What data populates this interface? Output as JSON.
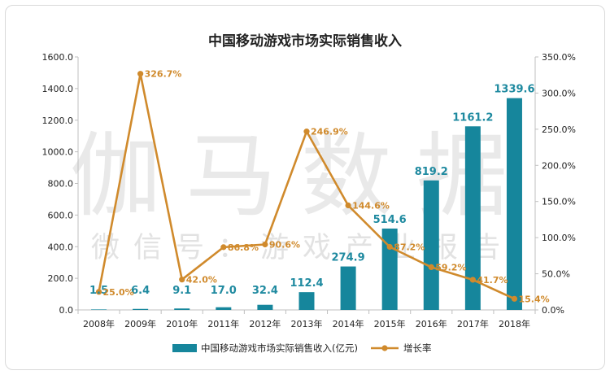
{
  "watermark": {
    "main": "伽马数据",
    "sub": "微信号：游戏产业报告"
  },
  "chart_data": {
    "type": "bar",
    "title": "中国移动游戏市场实际销售收入",
    "categories": [
      "2008年",
      "2009年",
      "2010年",
      "2011年",
      "2012年",
      "2013年",
      "2014年",
      "2015年",
      "2016年",
      "2017年",
      "2018年"
    ],
    "series": [
      {
        "name": "中国移动游戏市场实际销售收入(亿元)",
        "type": "bar",
        "axis": "left",
        "color": "#16869c",
        "values": [
          1.5,
          6.4,
          9.1,
          17.0,
          32.4,
          112.4,
          274.9,
          514.6,
          819.2,
          1161.2,
          1339.6
        ],
        "labels": [
          "1.5",
          "6.4",
          "9.1",
          "17.0",
          "32.4",
          "112.4",
          "274.9",
          "514.6",
          "819.2",
          "1161.2",
          "1339.6"
        ]
      },
      {
        "name": "增长率",
        "type": "line",
        "axis": "right",
        "color": "#d08a2c",
        "values": [
          25.0,
          326.7,
          42.0,
          86.8,
          90.6,
          246.9,
          144.6,
          87.2,
          59.2,
          41.7,
          15.4
        ],
        "labels": [
          "25.0%",
          "326.7%",
          "42.0%",
          "86.8%",
          "90.6%",
          "246.9%",
          "144.6%",
          "87.2%",
          "59.2%",
          "41.7%",
          "15.4%"
        ]
      }
    ],
    "y_left": {
      "min": 0,
      "max": 1600,
      "step": 200,
      "ticks": [
        "0.0",
        "200.0",
        "400.0",
        "600.0",
        "800.0",
        "1000.0",
        "1200.0",
        "1400.0",
        "1600.0"
      ]
    },
    "y_right": {
      "min": 0,
      "max": 350,
      "step": 50,
      "ticks": [
        "0.0%",
        "50.0%",
        "100.0%",
        "150.0%",
        "200.0%",
        "250.0%",
        "300.0%",
        "350.0%"
      ]
    },
    "legend": {
      "position": "bottom",
      "bar_label": "中国移动游戏市场实际销售收入(亿元)",
      "line_label": "增长率"
    },
    "grid": false
  }
}
